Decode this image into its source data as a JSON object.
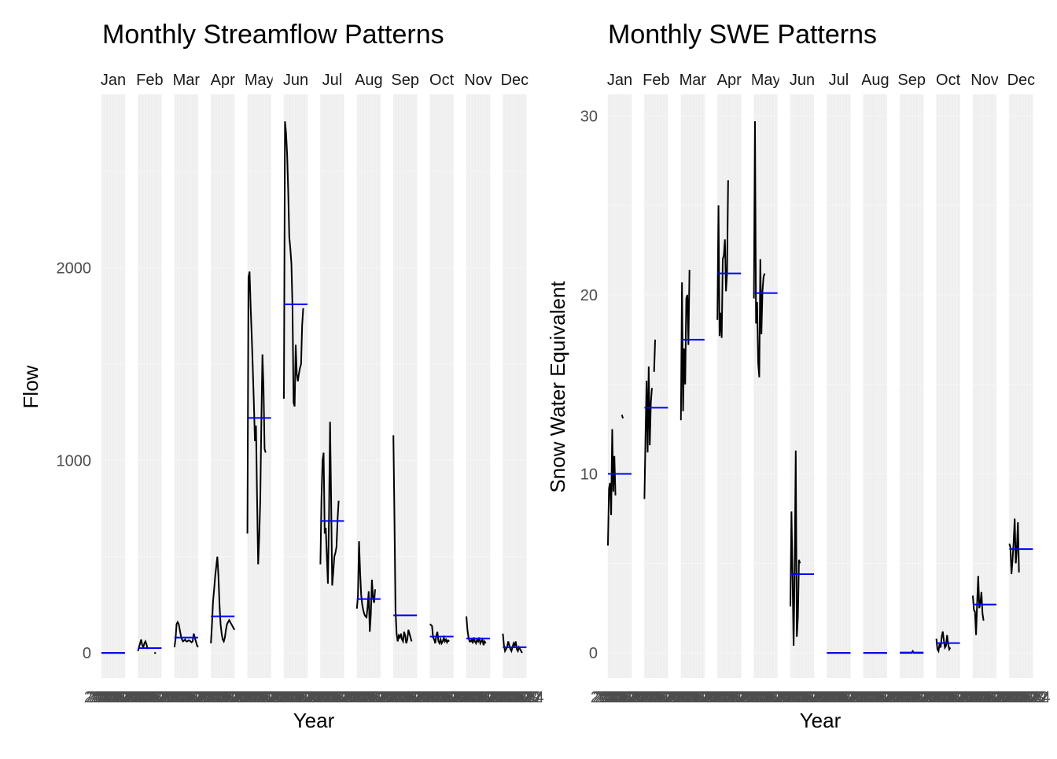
{
  "chart_data": [
    {
      "type": "line",
      "title": "Monthly Streamflow Patterns",
      "xlabel": "Year",
      "ylabel": "Flow",
      "ylim": [
        -130,
        2900
      ],
      "yticks": [
        0,
        1000,
        2000
      ],
      "facets": [
        "Jan",
        "Feb",
        "Mar",
        "Apr",
        "May",
        "Jun",
        "Jul",
        "Aug",
        "Sep",
        "Oct",
        "Nov",
        "Dec"
      ],
      "x_tick_labels": [
        "2002",
        "2003",
        "2004",
        "2005",
        "2006",
        "2007",
        "2008",
        "2009",
        "2010",
        "2011",
        "2012",
        "2013",
        "2014",
        "2015",
        "2016",
        "2017",
        "2018",
        "2019",
        "2020",
        "2021",
        "2022",
        "2023",
        "2024"
      ],
      "series": [
        {
          "facet": "Jan",
          "mean": 0,
          "values": [
            0,
            0,
            0,
            0,
            0,
            0,
            0,
            0,
            0,
            0,
            0,
            0,
            0,
            0,
            0,
            0,
            0,
            0,
            0,
            0,
            0,
            0,
            0
          ]
        },
        {
          "facet": "Feb",
          "mean": 25,
          "values": [
            10,
            30,
            50,
            70,
            40,
            30,
            50,
            60,
            45,
            20,
            null,
            null,
            null,
            null,
            null,
            null,
            0,
            null,
            null,
            null,
            null,
            null,
            null
          ]
        },
        {
          "facet": "Mar",
          "mean": 80,
          "values": [
            30,
            70,
            150,
            160,
            150,
            120,
            90,
            70,
            60,
            65,
            70,
            60,
            60,
            65,
            65,
            60,
            55,
            60,
            100,
            80,
            60,
            40,
            30
          ]
        },
        {
          "facet": "Apr",
          "mean": 190,
          "values": [
            50,
            150,
            270,
            330,
            400,
            450,
            500,
            400,
            250,
            150,
            100,
            70,
            60,
            80,
            120,
            150,
            160,
            170,
            160,
            150,
            140,
            130,
            120
          ]
        },
        {
          "facet": "May",
          "mean": 1220,
          "values": [
            620,
            1950,
            1980,
            1800,
            1650,
            1480,
            1300,
            1100,
            1180,
            800,
            460,
            600,
            800,
            1200,
            1550,
            1380,
            1060,
            1040,
            null,
            null,
            null,
            null,
            null
          ]
        },
        {
          "facet": "Jun",
          "mean": 1810,
          "values": [
            1320,
            2760,
            2700,
            2590,
            2400,
            2160,
            2100,
            2020,
            1800,
            1300,
            1280,
            1600,
            1450,
            1410,
            1450,
            1480,
            1500,
            1700,
            1790,
            null,
            null,
            null,
            null
          ]
        },
        {
          "facet": "Jul",
          "mean": 685,
          "values": [
            460,
            800,
            1000,
            1040,
            620,
            650,
            500,
            360,
            700,
            1200,
            800,
            350,
            420,
            500,
            520,
            550,
            690,
            790,
            null,
            null,
            null,
            null,
            null
          ]
        },
        {
          "facet": "Aug",
          "mean": 280,
          "values": [
            230,
            300,
            580,
            420,
            300,
            250,
            220,
            200,
            190,
            185,
            240,
            320,
            110,
            200,
            380,
            290,
            260,
            330,
            null,
            null,
            null,
            null,
            null
          ]
        },
        {
          "facet": "Sep",
          "mean": 195,
          "values": [
            1130,
            700,
            220,
            100,
            60,
            90,
            80,
            100,
            70,
            60,
            110,
            90,
            50,
            70,
            120,
            100,
            80,
            60,
            null,
            null,
            null,
            null,
            null
          ]
        },
        {
          "facet": "Oct",
          "mean": 85,
          "values": [
            150,
            145,
            140,
            80,
            70,
            50,
            90,
            110,
            60,
            50,
            70,
            50,
            60,
            80,
            60,
            70,
            55,
            65,
            60,
            null,
            null,
            null,
            null
          ]
        },
        {
          "facet": "Nov",
          "mean": 75,
          "values": [
            190,
            120,
            80,
            60,
            60,
            70,
            50,
            80,
            60,
            50,
            70,
            60,
            80,
            50,
            60,
            70,
            40,
            60,
            50,
            null,
            null,
            null,
            null
          ]
        },
        {
          "facet": "Dec",
          "mean": 30,
          "values": [
            100,
            40,
            10,
            20,
            30,
            60,
            40,
            20,
            10,
            30,
            50,
            40,
            60,
            20,
            10,
            30,
            20,
            10,
            0,
            null,
            null,
            null,
            null
          ]
        }
      ]
    },
    {
      "type": "line",
      "title": "Monthly SWE Patterns",
      "xlabel": "Year",
      "ylabel": "Snow Water Equivalent",
      "ylim": [
        -1.4,
        31.2
      ],
      "yticks": [
        0,
        10,
        20,
        30
      ],
      "facets": [
        "Jan",
        "Feb",
        "Mar",
        "Apr",
        "May",
        "Jun",
        "Jul",
        "Aug",
        "Sep",
        "Oct",
        "Nov",
        "Dec"
      ],
      "x_tick_labels": [
        "2002",
        "2003",
        "2004",
        "2005",
        "2006",
        "2007",
        "2008",
        "2009",
        "2010",
        "2011",
        "2012",
        "2013",
        "2014",
        "2015",
        "2016",
        "2017",
        "2018",
        "2019",
        "2020",
        "2021",
        "2022",
        "2023",
        "2024"
      ],
      "series": [
        {
          "facet": "Jan",
          "mean": 10,
          "values": [
            6.0,
            9.2,
            9.5,
            7.7,
            12.5,
            9.0,
            11.0,
            8.8,
            null,
            null,
            null,
            null,
            null,
            13.3,
            13.1,
            null,
            null,
            null,
            null,
            null,
            null,
            null,
            null
          ]
        },
        {
          "facet": "Feb",
          "mean": 13.7,
          "values": [
            8.6,
            12.0,
            15.2,
            11.2,
            16.0,
            11.6,
            14.0,
            14.8,
            null,
            15.7,
            17.5,
            null,
            null,
            null,
            null,
            null,
            null,
            null,
            null,
            null,
            null,
            null,
            null
          ]
        },
        {
          "facet": "Mar",
          "mean": 17.5,
          "values": [
            13.0,
            20.7,
            13.5,
            17.0,
            15.0,
            19.8,
            20.0,
            17.2,
            21.4,
            null,
            null,
            null,
            null,
            null,
            null,
            null,
            null,
            null,
            null,
            null,
            null,
            null,
            null
          ]
        },
        {
          "facet": "Apr",
          "mean": 21.2,
          "values": [
            18.6,
            25.0,
            17.7,
            19.0,
            17.6,
            22.0,
            22.2,
            23.1,
            20.2,
            21.2,
            26.4,
            null,
            null,
            null,
            null,
            null,
            null,
            null,
            null,
            null,
            null,
            null,
            null
          ]
        },
        {
          "facet": "May",
          "mean": 20.1,
          "values": [
            19.8,
            29.7,
            18.4,
            19.6,
            16.2,
            15.4,
            22.0,
            17.8,
            20.2,
            21.0,
            21.2,
            null,
            null,
            null,
            null,
            null,
            null,
            null,
            null,
            null,
            null,
            null,
            null
          ]
        },
        {
          "facet": "Jun",
          "mean": 4.4,
          "values": [
            2.6,
            7.9,
            4.3,
            0.4,
            4.8,
            11.3,
            0.9,
            2.0,
            5.2,
            5.0,
            null,
            null,
            null,
            null,
            null,
            null,
            null,
            null,
            null,
            null,
            null,
            null,
            null
          ]
        },
        {
          "facet": "Jul",
          "mean": 0,
          "values": [
            0,
            0,
            0,
            0,
            0,
            0,
            0,
            0,
            0,
            0,
            0,
            0,
            0,
            0,
            0,
            0,
            0,
            0,
            0,
            0,
            0,
            0,
            0
          ]
        },
        {
          "facet": "Aug",
          "mean": 0,
          "values": [
            0,
            0,
            0,
            0,
            0,
            0,
            0,
            0,
            0,
            0,
            0,
            0,
            0,
            0,
            0,
            0,
            0,
            0,
            0,
            0,
            0,
            0,
            0
          ]
        },
        {
          "facet": "Sep",
          "mean": 0.02,
          "values": [
            0,
            0,
            0,
            0,
            0,
            0,
            0,
            0,
            0,
            0,
            0,
            0,
            0.1,
            0,
            0,
            0,
            0,
            0,
            0,
            0,
            0,
            0,
            0
          ]
        },
        {
          "facet": "Oct",
          "mean": 0.55,
          "values": [
            0.8,
            0.2,
            0.1,
            0.5,
            0.3,
            0.9,
            1.2,
            0.7,
            0.3,
            0.4,
            1.0,
            0.5,
            0.2,
            0.3,
            null,
            null,
            null,
            null,
            null,
            null,
            null,
            null,
            null
          ]
        },
        {
          "facet": "Nov",
          "mean": 2.7,
          "values": [
            3.2,
            2.4,
            2.3,
            1.0,
            2.8,
            4.3,
            2.5,
            2.8,
            3.4,
            2.2,
            1.8,
            null,
            null,
            null,
            null,
            null,
            null,
            null,
            null,
            null,
            null,
            null,
            null
          ]
        },
        {
          "facet": "Dec",
          "mean": 5.8,
          "values": [
            6.1,
            5.9,
            4.4,
            5.2,
            6.2,
            7.5,
            5.0,
            5.8,
            7.3,
            4.5,
            null,
            null,
            null,
            null,
            null,
            null,
            null,
            null,
            null,
            null,
            null,
            null,
            null
          ]
        }
      ]
    }
  ]
}
